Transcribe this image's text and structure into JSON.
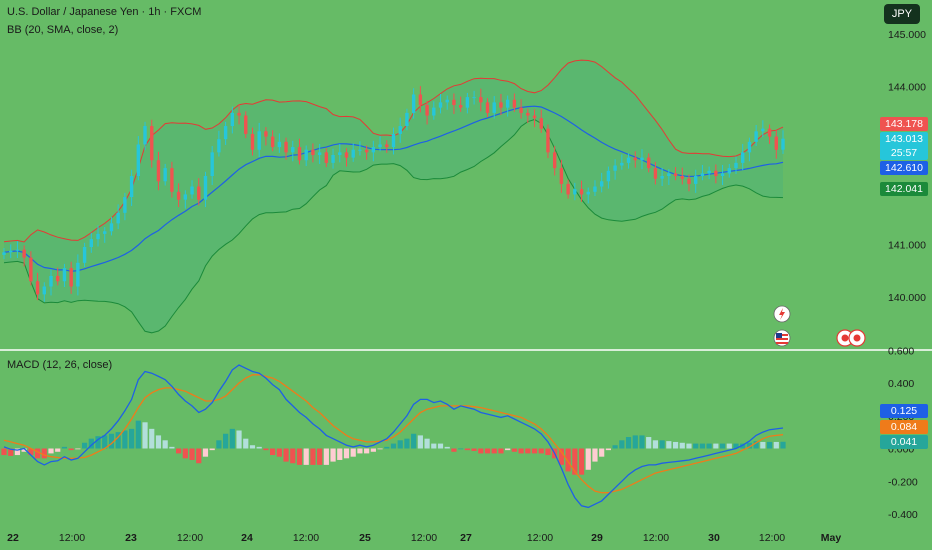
{
  "header": {
    "title": "U.S. Dollar / Japanese Yen · 1h · FXCM",
    "bb_label": "BB (20, SMA, close, 2)",
    "macd_label": "MACD (12, 26, close)",
    "currency": "JPY"
  },
  "badges": {
    "upper": "143.178",
    "price": "143.013",
    "countdown": "25:57",
    "basis": "142.610",
    "lower": "142.041",
    "macd": "0.125",
    "signal": "0.084",
    "hist": "0.041"
  },
  "colors": {
    "background": "#66bb66",
    "up": "#26c6da",
    "down": "#ef5350",
    "bb_upper": "#e53935",
    "bb_basis": "#1e60e6",
    "bb_lower": "#1b8a3a",
    "macd_line": "#1e60e6",
    "signal_line": "#ef7b1a"
  },
  "chart_data": [
    {
      "type": "candlestick",
      "title": "U.S. Dollar / Japanese Yen · 1h · FXCM",
      "ylim": [
        139.1,
        145.3
      ],
      "y_ticks": [
        "145.000",
        "144.000",
        "143.000",
        "142.000",
        "141.000",
        "140.000"
      ],
      "x_ticks": [
        "22",
        "12:00",
        "23",
        "12:00",
        "24",
        "12:00",
        "25",
        "12:00",
        "27",
        "12:00",
        "29",
        "12:00",
        "30",
        "12:00",
        "May"
      ],
      "close": [
        140.85,
        140.88,
        140.9,
        140.75,
        140.3,
        140.05,
        140.2,
        140.4,
        140.3,
        140.55,
        140.2,
        140.65,
        140.95,
        141.1,
        141.2,
        141.25,
        141.4,
        141.6,
        141.9,
        142.3,
        142.9,
        143.25,
        142.6,
        142.2,
        142.45,
        142.0,
        141.85,
        141.95,
        142.1,
        141.85,
        142.3,
        142.75,
        143.0,
        143.25,
        143.5,
        143.45,
        143.1,
        142.8,
        143.15,
        143.05,
        142.85,
        142.95,
        142.75,
        142.85,
        142.6,
        142.8,
        142.7,
        142.75,
        142.55,
        142.7,
        142.75,
        142.65,
        142.8,
        142.8,
        142.75,
        142.85,
        142.9,
        142.85,
        143.1,
        143.25,
        143.5,
        143.85,
        143.65,
        143.45,
        143.6,
        143.7,
        143.75,
        143.65,
        143.6,
        143.8,
        143.8,
        143.7,
        143.5,
        143.7,
        143.6,
        143.75,
        143.6,
        143.5,
        143.45,
        143.4,
        143.2,
        142.75,
        142.45,
        142.15,
        141.95,
        142.05,
        141.95,
        142.0,
        142.1,
        142.2,
        142.4,
        142.5,
        142.55,
        142.65,
        142.6,
        142.65,
        142.45,
        142.25,
        142.3,
        142.35,
        142.3,
        142.25,
        142.15,
        142.3,
        142.35,
        142.4,
        142.3,
        142.35,
        142.45,
        142.55,
        142.75,
        142.95,
        143.15,
        143.2,
        143.05,
        142.8,
        143.01
      ]
    },
    {
      "type": "line",
      "title": "MACD (12, 26, close)",
      "ylim": [
        -0.45,
        0.6
      ],
      "y_ticks": [
        "0.600",
        "0.400",
        "0.200",
        "0.000",
        "-0.200",
        "-0.400"
      ],
      "series": [
        {
          "name": "MACD",
          "values": [
            0.01,
            -0.005,
            -0.01,
            0.0,
            -0.04,
            -0.08,
            -0.1,
            -0.08,
            -0.075,
            -0.05,
            -0.07,
            -0.06,
            -0.02,
            0.02,
            0.055,
            0.08,
            0.12,
            0.17,
            0.23,
            0.3,
            0.42,
            0.47,
            0.46,
            0.44,
            0.42,
            0.38,
            0.33,
            0.29,
            0.26,
            0.22,
            0.24,
            0.28,
            0.35,
            0.41,
            0.48,
            0.51,
            0.49,
            0.47,
            0.46,
            0.43,
            0.39,
            0.36,
            0.3,
            0.26,
            0.22,
            0.19,
            0.15,
            0.12,
            0.08,
            0.06,
            0.04,
            0.02,
            0.01,
            0.02,
            0.01,
            0.02,
            0.04,
            0.06,
            0.1,
            0.15,
            0.2,
            0.27,
            0.3,
            0.3,
            0.28,
            0.29,
            0.27,
            0.24,
            0.26,
            0.25,
            0.24,
            0.22,
            0.21,
            0.2,
            0.19,
            0.2,
            0.18,
            0.16,
            0.14,
            0.12,
            0.09,
            0.04,
            -0.03,
            -0.12,
            -0.22,
            -0.3,
            -0.35,
            -0.36,
            -0.34,
            -0.32,
            -0.28,
            -0.24,
            -0.2,
            -0.16,
            -0.13,
            -0.11,
            -0.1,
            -0.1,
            -0.09,
            -0.085,
            -0.08,
            -0.075,
            -0.07,
            -0.06,
            -0.05,
            -0.04,
            -0.03,
            -0.02,
            -0.01,
            0.0,
            0.02,
            0.045,
            0.08,
            0.1,
            0.115,
            0.12,
            0.125
          ]
        },
        {
          "name": "Signal",
          "values": [
            0.05,
            0.04,
            0.03,
            0.02,
            0.0,
            -0.02,
            -0.04,
            -0.05,
            -0.055,
            -0.06,
            -0.06,
            -0.058,
            -0.055,
            -0.04,
            -0.02,
            0.0,
            0.03,
            0.07,
            0.12,
            0.18,
            0.25,
            0.31,
            0.34,
            0.36,
            0.37,
            0.37,
            0.36,
            0.35,
            0.33,
            0.31,
            0.29,
            0.29,
            0.3,
            0.32,
            0.36,
            0.4,
            0.43,
            0.45,
            0.45,
            0.44,
            0.43,
            0.41,
            0.38,
            0.35,
            0.32,
            0.29,
            0.25,
            0.22,
            0.18,
            0.14,
            0.11,
            0.08,
            0.06,
            0.05,
            0.04,
            0.04,
            0.045,
            0.05,
            0.07,
            0.1,
            0.14,
            0.18,
            0.22,
            0.24,
            0.25,
            0.26,
            0.26,
            0.26,
            0.26,
            0.26,
            0.255,
            0.25,
            0.24,
            0.23,
            0.22,
            0.21,
            0.2,
            0.19,
            0.17,
            0.15,
            0.12,
            0.08,
            0.03,
            -0.02,
            -0.08,
            -0.14,
            -0.19,
            -0.23,
            -0.26,
            -0.27,
            -0.27,
            -0.26,
            -0.25,
            -0.23,
            -0.21,
            -0.19,
            -0.17,
            -0.15,
            -0.14,
            -0.13,
            -0.12,
            -0.11,
            -0.1,
            -0.09,
            -0.08,
            -0.07,
            -0.06,
            -0.05,
            -0.04,
            -0.03,
            -0.01,
            0.01,
            0.035,
            0.06,
            0.075,
            0.08,
            0.084
          ]
        }
      ]
    }
  ]
}
